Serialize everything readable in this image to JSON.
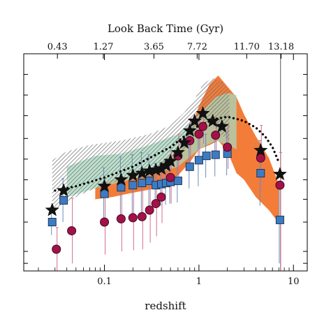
{
  "chart_data": {
    "type": "scatter",
    "title": "",
    "xlabel": "redshift",
    "ylabel": "",
    "top_axis_label": "Look Back Time (Gyr)",
    "x_scale": "log",
    "xlim": [
      0.014,
      14
    ],
    "ylim": [
      0,
      1
    ],
    "x_ticks": [
      {
        "value": 0.1,
        "label": "0.1"
      },
      {
        "value": 1,
        "label": "1"
      },
      {
        "value": 10,
        "label": "10"
      }
    ],
    "top_ticks": [
      {
        "z": 0.0318,
        "label": "0.43"
      },
      {
        "z": 0.0974,
        "label": "1.27"
      },
      {
        "z": 0.334,
        "label": "3.65"
      },
      {
        "z": 0.958,
        "label": "7.72"
      },
      {
        "z": 3.2,
        "label": "11.70"
      },
      {
        "z": 7.4,
        "label": "13.18"
      }
    ],
    "y_ticks_unlabeled": [
      0.035,
      0.09,
      0.225,
      0.33,
      0.42,
      0.515,
      0.61,
      0.715,
      0.81,
      0.905
    ],
    "grid": false,
    "legend": "none",
    "vertical_line_z": 7.3,
    "colors": {
      "hatch": "#6a6a6a",
      "green_band": "#a7d8bf",
      "orange_band": "#f36a1e",
      "square_fill": "#3d7cc4",
      "square_edge": "#1e3550",
      "circle_fill": "#a5104a",
      "circle_edge": "#3a0a1d",
      "star": "#111111",
      "square_err": "#6b8ab6",
      "circle_err": "#d06f8a",
      "dotted_curve": "#000000"
    },
    "bands": [
      {
        "name": "hatched",
        "x": [
          0.028,
          0.04,
          0.07,
          0.15,
          0.3,
          0.5,
          0.7,
          0.9,
          1.1,
          1.4,
          1.8,
          2.1
        ],
        "upper": [
          0.51,
          0.55,
          0.58,
          0.6,
          0.63,
          0.67,
          0.73,
          0.79,
          0.86,
          0.89,
          0.87,
          0.83
        ],
        "lower": [
          0.27,
          0.32,
          0.37,
          0.42,
          0.45,
          0.5,
          0.56,
          0.66,
          0.69,
          0.67,
          0.62,
          0.6
        ]
      },
      {
        "name": "green",
        "x": [
          0.04,
          0.08,
          0.15,
          0.3,
          0.6,
          1.0,
          1.5,
          2.0,
          2.5
        ],
        "upper": [
          0.48,
          0.53,
          0.54,
          0.58,
          0.63,
          0.72,
          0.8,
          0.82,
          0.81
        ],
        "lower": [
          0.34,
          0.38,
          0.41,
          0.44,
          0.48,
          0.56,
          0.6,
          0.58,
          0.56
        ]
      },
      {
        "name": "orange",
        "x": [
          0.08,
          0.12,
          0.2,
          0.35,
          0.6,
          0.8,
          1.0,
          1.3,
          1.6,
          2.0,
          2.5,
          3.0,
          4.0,
          5.5,
          7.0
        ],
        "upper": [
          0.38,
          0.42,
          0.44,
          0.48,
          0.56,
          0.64,
          0.76,
          0.86,
          0.9,
          0.85,
          0.8,
          0.72,
          0.62,
          0.52,
          0.4
        ],
        "lower": [
          0.33,
          0.34,
          0.36,
          0.38,
          0.44,
          0.5,
          0.56,
          0.58,
          0.6,
          0.55,
          0.45,
          0.42,
          0.34,
          0.28,
          0.22
        ]
      }
    ],
    "dotted_curve": {
      "x": [
        0.03,
        0.05,
        0.1,
        0.2,
        0.3,
        0.5,
        0.7,
        1.0,
        1.5,
        2.0,
        2.5,
        3.0,
        4.0,
        5.0,
        6.0,
        7.0
      ],
      "y": [
        0.37,
        0.39,
        0.43,
        0.48,
        0.52,
        0.57,
        0.62,
        0.67,
        0.7,
        0.71,
        0.7,
        0.69,
        0.66,
        0.62,
        0.57,
        0.5
      ]
    },
    "series": [
      {
        "marker": "star",
        "x": [
          0.028,
          0.037,
          0.1,
          0.15,
          0.2,
          0.25,
          0.3,
          0.35,
          0.4,
          0.45,
          0.5,
          0.6,
          0.7,
          0.8,
          0.9,
          1.1,
          1.4,
          1.75,
          4.5,
          7.2
        ],
        "y": [
          0.28,
          0.37,
          0.39,
          0.42,
          0.44,
          0.45,
          0.46,
          0.465,
          0.47,
          0.485,
          0.505,
          0.545,
          0.59,
          0.645,
          0.69,
          0.725,
          0.69,
          0.665,
          0.555,
          0.445
        ]
      },
      {
        "marker": "square",
        "x": [
          0.028,
          0.037,
          0.1,
          0.15,
          0.2,
          0.25,
          0.3,
          0.35,
          0.4,
          0.45,
          0.5,
          0.6,
          0.8,
          1.0,
          1.2,
          1.5,
          2.0,
          4.5,
          7.2
        ],
        "y": [
          0.225,
          0.325,
          0.355,
          0.385,
          0.395,
          0.405,
          0.415,
          0.395,
          0.4,
          0.405,
          0.41,
          0.415,
          0.48,
          0.51,
          0.53,
          0.535,
          0.54,
          0.45,
          0.235
        ],
        "err_up": [
          0.06,
          0.1,
          0.12,
          0.14,
          0.14,
          0.14,
          0.12,
          0.1,
          0.1,
          0.1,
          0.1,
          0.1,
          0.1,
          0.12,
          0.1,
          0.1,
          0.1,
          0.15,
          0.15
        ],
        "err_down": [
          0.06,
          0.1,
          0.12,
          0.14,
          0.14,
          0.14,
          0.12,
          0.1,
          0.1,
          0.1,
          0.1,
          0.1,
          0.1,
          0.12,
          0.1,
          0.1,
          0.1,
          0.15,
          0.2
        ]
      },
      {
        "marker": "circle",
        "x": [
          0.031,
          0.045,
          0.1,
          0.15,
          0.2,
          0.25,
          0.3,
          0.35,
          0.4,
          0.5,
          0.6,
          0.8,
          1.0,
          1.1,
          1.5,
          2.0,
          4.5,
          7.2
        ],
        "y": [
          0.1,
          0.185,
          0.225,
          0.24,
          0.245,
          0.25,
          0.28,
          0.31,
          0.34,
          0.43,
          0.53,
          0.6,
          0.63,
          0.665,
          0.625,
          0.57,
          0.52,
          0.395
        ],
        "err_up": [
          0.1,
          0.15,
          0.15,
          0.15,
          0.15,
          0.15,
          0.15,
          0.15,
          0.12,
          0.12,
          0.1,
          0.1,
          0.1,
          0.08,
          0.08,
          0.1,
          0.15,
          0.15
        ],
        "err_down": [
          0.1,
          0.15,
          0.15,
          0.15,
          0.15,
          0.15,
          0.15,
          0.15,
          0.12,
          0.12,
          0.1,
          0.1,
          0.1,
          0.08,
          0.08,
          0.1,
          0.15,
          0.4
        ]
      }
    ]
  }
}
